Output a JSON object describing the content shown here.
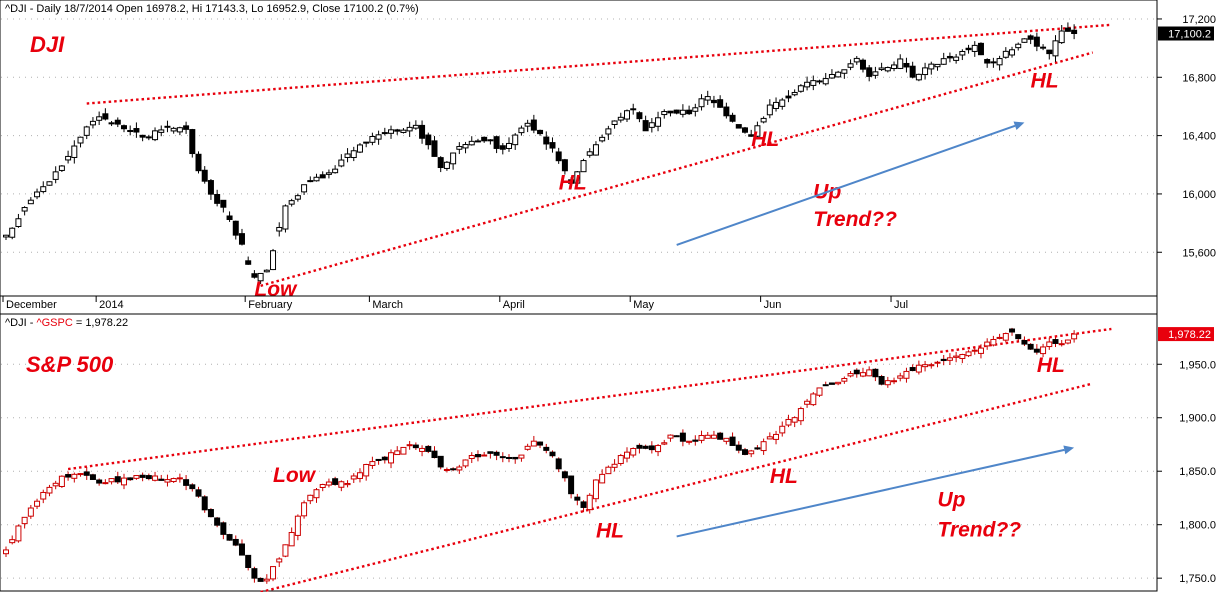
{
  "colors": {
    "annotation": "#e8000d",
    "trendline": "#e8000d",
    "arrow": "#4f86c9",
    "grid": "#b0b0b0",
    "bull": "#ffffff",
    "bear": "#000000",
    "wick_dji": "#000000",
    "wick_spx": "#cc0000",
    "price_tag_dji": "#000000",
    "price_tag_spx": "#e8000d"
  },
  "chart_data": [
    {
      "type": "candlestick",
      "header": "^DJI - Daily 18/7/2014 Open 16978.2, Hi 17143.3, Lo 16952.9, Close 17100.2 (0.7%)",
      "title": "DJI",
      "ylim": [
        15300,
        17330
      ],
      "yticks": [
        15600,
        16000,
        16400,
        16800,
        17200
      ],
      "ytick_labels": [
        "15,600",
        "16,000",
        "16,400",
        "16,800",
        "17,200"
      ],
      "last_price_label": "17,100.2",
      "last_price": 17100.2,
      "xlabels": [
        {
          "label": "December",
          "index": 0
        },
        {
          "label": "2014",
          "index": 15
        },
        {
          "label": "February",
          "index": 39
        },
        {
          "label": "March",
          "index": 59
        },
        {
          "label": "April",
          "index": 80
        },
        {
          "label": "May",
          "index": 101
        },
        {
          "label": "Jun",
          "index": 122
        },
        {
          "label": "Jul",
          "index": 143
        }
      ],
      "trendlines": [
        {
          "kind": "resistance",
          "from": [
            13,
            16620
          ],
          "to": [
            178,
            17160
          ]
        },
        {
          "kind": "support",
          "from": [
            41,
            15370
          ],
          "to": [
            175,
            16970
          ]
        }
      ],
      "annotations": [
        {
          "text": "DJI",
          "kind": "title"
        },
        {
          "text": "Low",
          "index": 40,
          "value": 15300
        },
        {
          "text": "HL",
          "index": 89,
          "value": 16030
        },
        {
          "text": "HL",
          "index": 120,
          "value": 16330
        },
        {
          "text": "Up",
          "index": 130,
          "value": 15970
        },
        {
          "text": "Trend??",
          "index": 130,
          "value": 15780
        },
        {
          "text": "HL",
          "index": 165,
          "value": 16730
        }
      ],
      "arrow": {
        "from": [
          108,
          15650
        ],
        "to": [
          164,
          16490
        ]
      }
    },
    {
      "type": "candlestick",
      "header_prefix": "^DJI - ",
      "header_symbol": "^GSPC",
      "header_value": " = 1,978.22",
      "title": "S&P 500",
      "ylim": [
        1738,
        1997
      ],
      "yticks": [
        1750,
        1800,
        1850,
        1900,
        1950
      ],
      "ytick_labels": [
        "1,750.0",
        "1,800.0",
        "1,850.0",
        "1,900.0",
        "1,950.0"
      ],
      "last_price_label": "1,978.22",
      "last_price": 1978.22,
      "trendlines": [
        {
          "kind": "resistance",
          "from": [
            10,
            1852
          ],
          "to": [
            178,
            1983
          ]
        },
        {
          "kind": "support",
          "from": [
            41,
            1737
          ],
          "to": [
            175,
            1932
          ]
        }
      ],
      "annotations": [
        {
          "text": "S&P 500",
          "kind": "title"
        },
        {
          "text": "Low",
          "index": 43,
          "value": 1840
        },
        {
          "text": "HL",
          "index": 95,
          "value": 1788
        },
        {
          "text": "HL",
          "index": 123,
          "value": 1839
        },
        {
          "text": "Up",
          "index": 150,
          "value": 1817
        },
        {
          "text": "Trend??",
          "index": 150,
          "value": 1789
        },
        {
          "text": "HL",
          "index": 166,
          "value": 1943
        }
      ],
      "arrow": {
        "from": [
          108,
          1789
        ],
        "to": [
          172,
          1872
        ]
      }
    }
  ]
}
